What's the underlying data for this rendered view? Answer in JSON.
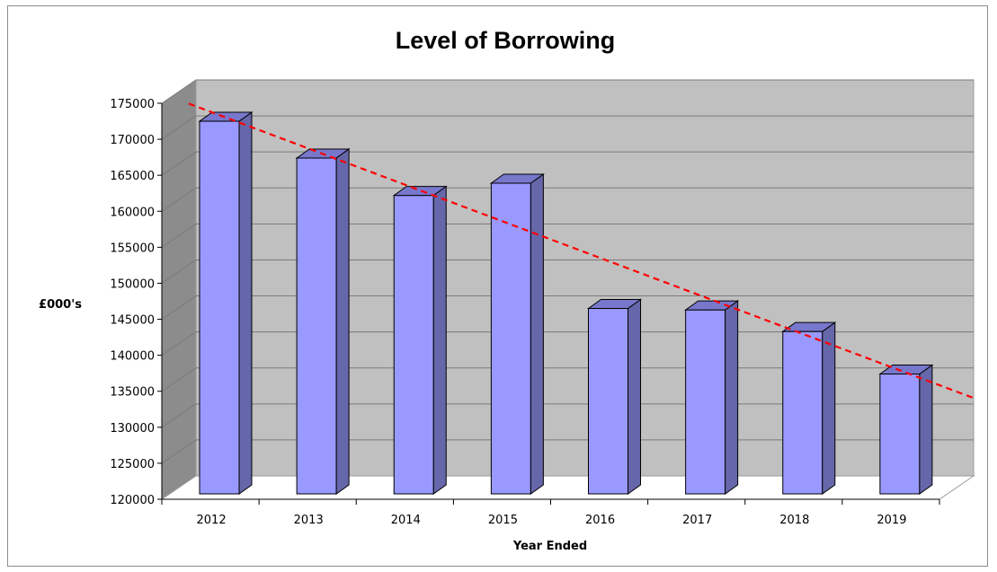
{
  "chart_data": {
    "type": "bar",
    "title": "Level of Borrowing",
    "xlabel": "Year Ended",
    "ylabel": "£000's",
    "categories": [
      "2012",
      "2013",
      "2014",
      "2015",
      "2016",
      "2017",
      "2018",
      "2019"
    ],
    "values": [
      172500,
      167400,
      162200,
      163900,
      146500,
      146300,
      143300,
      137400
    ],
    "ylim": [
      120000,
      175000
    ],
    "ytick_step": 5000,
    "yticks": [
      "120000",
      "125000",
      "130000",
      "135000",
      "140000",
      "145000",
      "150000",
      "155000",
      "160000",
      "165000",
      "170000",
      "175000"
    ],
    "grid": true,
    "legend": "none",
    "trendline": {
      "type": "linear",
      "style": "dashed",
      "color": "#ff0000"
    },
    "colors": {
      "bar_front": "#9999ff",
      "bar_side": "#6666aa",
      "bar_top": "#7777cc",
      "plot_back": "#c0c0c0",
      "plot_side": "#8c8c8c",
      "gridline": "#7a7a7a"
    }
  }
}
